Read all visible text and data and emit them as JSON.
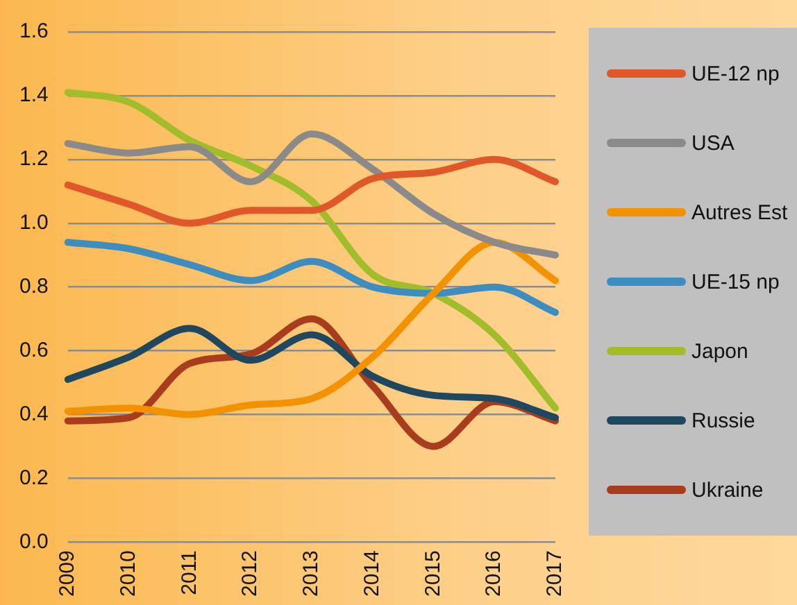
{
  "chart_data": {
    "type": "line",
    "categories": [
      "2009",
      "2010",
      "2011",
      "2012",
      "2013",
      "2014",
      "2015",
      "2016",
      "2017"
    ],
    "series": [
      {
        "name": "UE-12 np",
        "color": "#e0572a",
        "values": [
          1.12,
          1.06,
          1.0,
          1.04,
          1.04,
          1.14,
          1.16,
          1.2,
          1.13
        ]
      },
      {
        "name": "USA",
        "color": "#8a8a8a",
        "values": [
          1.25,
          1.22,
          1.24,
          1.13,
          1.28,
          1.17,
          1.03,
          0.94,
          0.9
        ]
      },
      {
        "name": "Autres Est",
        "color": "#f39200",
        "values": [
          0.41,
          0.42,
          0.4,
          0.43,
          0.45,
          0.58,
          0.78,
          0.94,
          0.82
        ]
      },
      {
        "name": "UE-15 np",
        "color": "#3e8dc0",
        "values": [
          0.94,
          0.92,
          0.87,
          0.82,
          0.88,
          0.8,
          0.78,
          0.8,
          0.72
        ]
      },
      {
        "name": "Japon",
        "color": "#a2bd2a",
        "values": [
          1.41,
          1.38,
          1.26,
          1.18,
          1.07,
          0.84,
          0.78,
          0.65,
          0.42
        ]
      },
      {
        "name": "Russie",
        "color": "#1f4760",
        "values": [
          0.51,
          0.58,
          0.67,
          0.57,
          0.65,
          0.52,
          0.46,
          0.45,
          0.39
        ]
      },
      {
        "name": "Ukraine",
        "color": "#a83c1c",
        "values": [
          0.38,
          0.39,
          0.56,
          0.59,
          0.7,
          0.49,
          0.3,
          0.44,
          0.38
        ]
      }
    ],
    "ylim": [
      0,
      1.6
    ],
    "yticks": [
      {
        "value": 0,
        "label": "0.0"
      },
      {
        "value": 0.2,
        "label": "0.2"
      },
      {
        "value": 0.4,
        "label": "0.4"
      },
      {
        "value": 0.6,
        "label": "0.6"
      },
      {
        "value": 0.8,
        "label": "0.8"
      },
      {
        "value": 1,
        "label": "1.0"
      },
      {
        "value": 1.2,
        "label": "1.2"
      },
      {
        "value": 1.4,
        "label": "1.4"
      },
      {
        "value": 1.6,
        "label": "1.6"
      }
    ],
    "grid": "y",
    "legend": "right",
    "marker": "none",
    "line_style": "solid"
  }
}
